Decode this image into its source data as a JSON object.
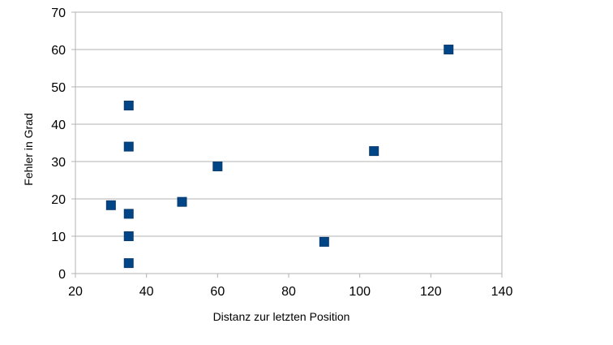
{
  "chart_data": {
    "type": "scatter",
    "title": "",
    "xlabel": "Distanz zur letzten Position",
    "ylabel": "Fehler in Grad",
    "xlim": [
      20,
      140
    ],
    "ylim": [
      0,
      70
    ],
    "xticks": [
      20,
      40,
      60,
      80,
      100,
      120,
      140
    ],
    "yticks": [
      0,
      10,
      20,
      30,
      40,
      50,
      60,
      70
    ],
    "grid": "horizontal",
    "legend": "none",
    "marker": "square",
    "marker_color": "#004586",
    "series": [
      {
        "points": [
          {
            "x": 35,
            "y": 45
          },
          {
            "x": 35,
            "y": 34
          },
          {
            "x": 60,
            "y": 28.7
          },
          {
            "x": 125,
            "y": 60
          },
          {
            "x": 104,
            "y": 32.8
          },
          {
            "x": 30,
            "y": 18.3
          },
          {
            "x": 50,
            "y": 19.2
          },
          {
            "x": 35,
            "y": 16
          },
          {
            "x": 35,
            "y": 10
          },
          {
            "x": 90,
            "y": 8.5
          },
          {
            "x": 35,
            "y": 2.8
          }
        ]
      }
    ]
  }
}
